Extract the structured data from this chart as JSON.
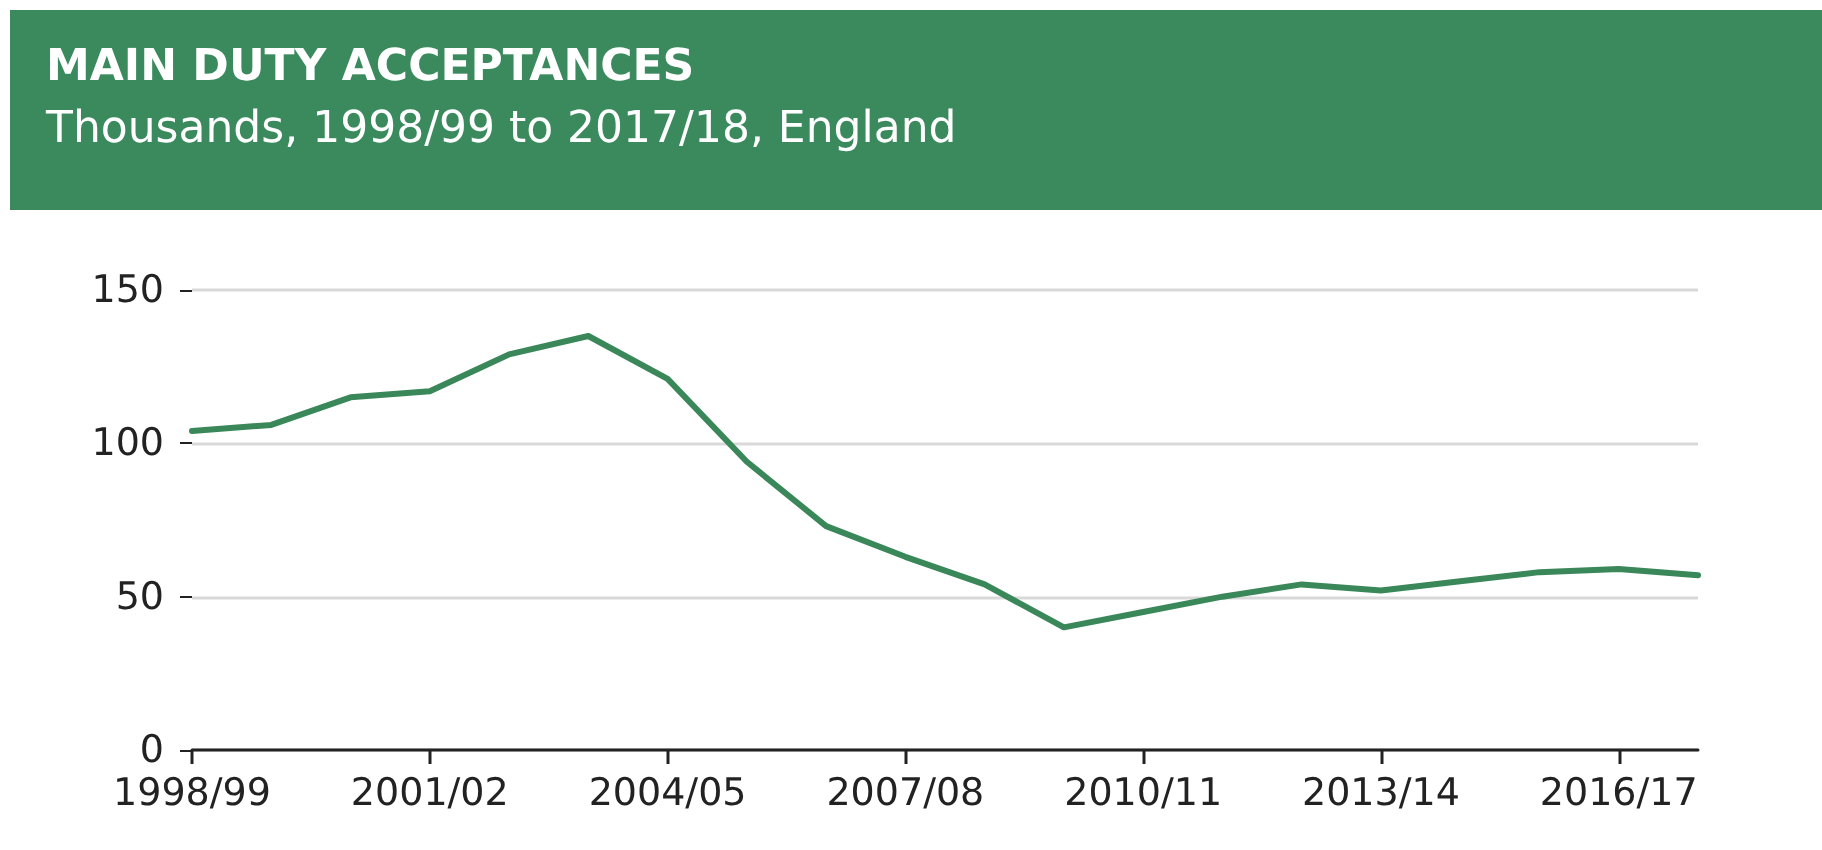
{
  "chart_data": {
    "type": "line",
    "title": "MAIN DUTY ACCEPTANCES",
    "subtitle": "Thousands, 1998/99 to 2017/18, England",
    "categories": [
      "1998/99",
      null,
      null,
      "2001/02",
      null,
      null,
      "2004/05",
      null,
      null,
      "2007/08",
      null,
      null,
      "2010/11",
      null,
      null,
      "2013/14",
      null,
      null,
      "2016/17",
      null
    ],
    "series": [
      {
        "color": "#3a875a",
        "values": [
          104,
          106,
          115,
          117,
          129,
          135,
          121,
          94,
          73,
          63,
          54,
          40,
          45,
          50,
          54,
          52,
          55,
          58,
          59,
          57
        ]
      }
    ],
    "ylim": [
      0,
      150
    ],
    "yticks": [
      0,
      50,
      100,
      150
    ],
    "grid": "y",
    "marker": "none",
    "line_style": "solid"
  }
}
